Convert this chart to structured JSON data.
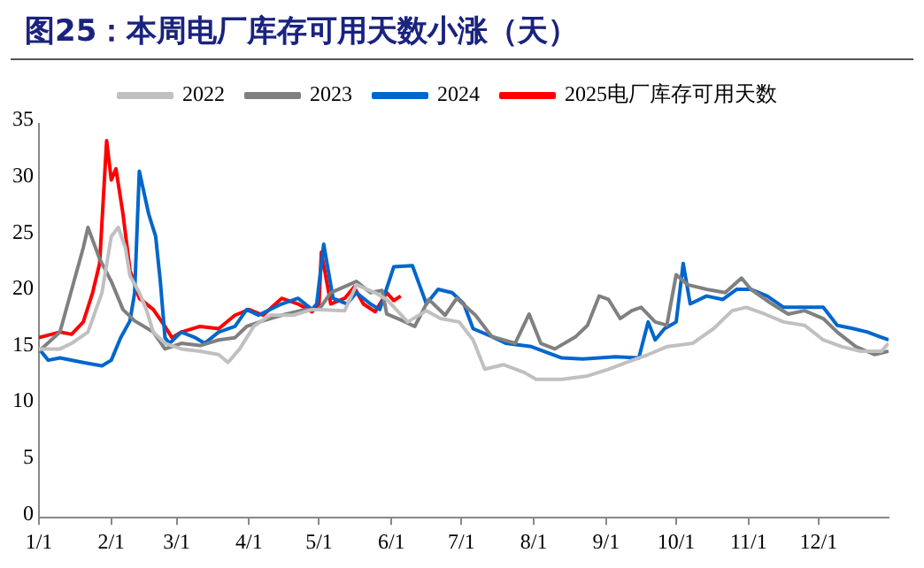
{
  "chart_data": {
    "type": "line",
    "title": "图25：本周电厂库存可用天数小涨（天）",
    "legend": "top",
    "marker": "none",
    "line_style": "solid",
    "grid": false,
    "xlim": [
      "--01-01",
      "--12-31"
    ],
    "xticks": [
      {
        "value": "--01-01",
        "label": "1/1"
      },
      {
        "value": "--02-01",
        "label": "2/1"
      },
      {
        "value": "--03-01",
        "label": "3/1"
      },
      {
        "value": "--04-01",
        "label": "4/1"
      },
      {
        "value": "--05-01",
        "label": "5/1"
      },
      {
        "value": "--06-01",
        "label": "6/1"
      },
      {
        "value": "--07-01",
        "label": "7/1"
      },
      {
        "value": "--08-01",
        "label": "8/1"
      },
      {
        "value": "--09-01",
        "label": "9/1"
      },
      {
        "value": "--10-01",
        "label": "10/1"
      },
      {
        "value": "--11-01",
        "label": "11/1"
      },
      {
        "value": "--12-01",
        "label": "12/1"
      }
    ],
    "ylim": [
      0,
      35
    ],
    "yticks": [
      0,
      5,
      10,
      15,
      20,
      25,
      30,
      35
    ],
    "series": [
      {
        "name": "2022",
        "color": "#c0c0c0",
        "x": [
          "--01-01",
          "--01-10",
          "--01-15",
          "--01-22",
          "--01-28",
          "--02-01",
          "--02-04",
          "--02-07",
          "--02-09",
          "--02-13",
          "--02-16",
          "--02-19",
          "--02-24",
          "--03-03",
          "--03-11",
          "--03-19",
          "--03-23",
          "--03-28",
          "--04-03",
          "--04-10",
          "--04-20",
          "--04-28",
          "--05-01",
          "--05-12",
          "--05-17",
          "--05-25",
          "--05-30",
          "--06-08",
          "--06-16",
          "--06-22",
          "--06-30",
          "--07-06",
          "--07-11",
          "--07-19",
          "--07-28",
          "--08-02",
          "--08-13",
          "--08-24",
          "--09-02",
          "--09-11",
          "--09-19",
          "--09-27",
          "--10-08",
          "--10-17",
          "--10-25",
          "--10-31",
          "--11-08",
          "--11-16",
          "--11-25",
          "--12-03",
          "--12-11",
          "--12-19",
          "--12-28",
          "--12-31"
        ],
        "values": [
          15,
          15,
          15.5,
          16.5,
          20,
          25,
          25.8,
          24,
          21.5,
          20,
          18.5,
          16.5,
          15.5,
          15,
          14.8,
          14.5,
          13.8,
          15,
          17,
          18,
          18,
          18.5,
          18.5,
          18.4,
          20.7,
          20,
          19.4,
          17.4,
          18.4,
          17.7,
          17.4,
          15.8,
          13.2,
          13.6,
          12.9,
          12.3,
          12.3,
          12.6,
          13.2,
          13.9,
          14.5,
          15.2,
          15.5,
          16.8,
          18.4,
          18.7,
          18.1,
          17.4,
          17.1,
          15.8,
          15.2,
          14.8,
          14.8,
          15.5
        ]
      },
      {
        "name": "2023",
        "color": "#808080",
        "x": [
          "--01-01",
          "--01-10",
          "--01-16",
          "--01-20",
          "--01-22",
          "--01-27",
          "--02-01",
          "--02-06",
          "--02-11",
          "--02-19",
          "--02-24",
          "--03-03",
          "--03-11",
          "--03-19",
          "--03-26",
          "--03-31",
          "--04-07",
          "--04-15",
          "--04-25",
          "--05-01",
          "--05-06",
          "--05-17",
          "--05-23",
          "--05-28",
          "--05-30",
          "--06-06",
          "--06-11",
          "--06-17",
          "--06-24",
          "--06-29",
          "--07-07",
          "--07-14",
          "--07-24",
          "--07-30",
          "--08-04",
          "--08-10",
          "--08-19",
          "--08-24",
          "--08-29",
          "--09-02",
          "--09-07",
          "--09-12",
          "--09-16",
          "--09-22",
          "--09-27",
          "--10-01",
          "--10-06",
          "--10-14",
          "--10-22",
          "--10-29",
          "--11-02",
          "--11-11",
          "--11-18",
          "--11-25",
          "--12-03",
          "--12-09",
          "--12-17",
          "--12-25",
          "--12-31"
        ],
        "values": [
          14.8,
          16.5,
          21,
          24,
          25.8,
          23,
          21,
          18.5,
          17.5,
          16.5,
          15,
          15.5,
          15.3,
          15.8,
          16,
          17,
          17.5,
          18,
          18.5,
          18.5,
          20,
          21,
          20,
          20.2,
          18.1,
          17.5,
          17,
          19.4,
          18,
          19.5,
          18,
          16.1,
          15.5,
          18.1,
          15.5,
          15,
          16.1,
          17.1,
          19.7,
          19.4,
          17.7,
          18.4,
          18.7,
          17.4,
          17.1,
          21.6,
          20.7,
          20.3,
          20,
          21.3,
          20.3,
          19,
          18.1,
          18.4,
          17.7,
          16.5,
          15.2,
          14.5,
          14.8
        ]
      },
      {
        "name": "2024",
        "color": "#0066cc",
        "x": [
          "--01-01",
          "--01-05",
          "--01-10",
          "--01-20",
          "--01-28",
          "--02-01",
          "--02-05",
          "--02-09",
          "--02-11",
          "--02-13",
          "--02-17",
          "--02-20",
          "--02-22",
          "--02-24",
          "--02-26",
          "--03-03",
          "--03-09",
          "--03-13",
          "--03-19",
          "--03-26",
          "--03-31",
          "--04-05",
          "--04-15",
          "--04-22",
          "--04-28",
          "--04-30",
          "--05-03",
          "--05-07",
          "--05-13",
          "--05-17",
          "--05-23",
          "--05-27",
          "--06-02",
          "--06-10",
          "--06-13",
          "--06-16",
          "--06-21",
          "--06-27",
          "--07-02",
          "--07-06",
          "--07-14",
          "--07-20",
          "--07-31",
          "--08-13",
          "--08-22",
          "--09-05",
          "--09-15",
          "--09-19",
          "--09-22",
          "--09-26",
          "--10-01",
          "--10-04",
          "--10-07",
          "--10-14",
          "--10-21",
          "--10-27",
          "--11-02",
          "--11-09",
          "--11-16",
          "--11-25",
          "--12-03",
          "--12-09",
          "--12-16",
          "--12-22",
          "--12-27",
          "--12-31"
        ],
        "values": [
          15,
          14,
          14.2,
          13.8,
          13.5,
          14,
          16,
          17.5,
          20,
          30.8,
          27,
          25,
          21,
          16,
          15.5,
          16.5,
          16,
          15.5,
          16.5,
          17,
          18.5,
          18,
          19,
          19.5,
          18.5,
          19,
          24.3,
          19.5,
          19,
          20,
          19,
          18.5,
          22.3,
          22.4,
          20.7,
          19,
          20.3,
          20,
          19,
          16.8,
          16.1,
          15.5,
          15.2,
          14.2,
          14.1,
          14.3,
          14.2,
          17.4,
          15.8,
          16.8,
          17.4,
          22.6,
          19,
          19.7,
          19.4,
          20.3,
          20.3,
          19.7,
          18.7,
          18.7,
          18.7,
          17.1,
          16.8,
          16.5,
          16.1,
          15.8
        ]
      },
      {
        "name": "2025电厂库存可用天数",
        "color": "#ff0000",
        "x": [
          "--01-01",
          "--01-10",
          "--01-15",
          "--01-20",
          "--01-24",
          "--01-27",
          "--01-30",
          "--02-01",
          "--02-03",
          "--02-06",
          "--02-09",
          "--02-13",
          "--02-19",
          "--02-24",
          "--02-27",
          "--03-03",
          "--03-11",
          "--03-19",
          "--03-26",
          "--04-01",
          "--04-07",
          "--04-15",
          "--04-22",
          "--04-28",
          "--05-01",
          "--05-02",
          "--05-06",
          "--05-12",
          "--05-16",
          "--05-20",
          "--05-25",
          "--05-30",
          "--06-02",
          "--06-05"
        ],
        "values": [
          16,
          16.5,
          16.3,
          17.4,
          20,
          22.6,
          33.5,
          30,
          31,
          27,
          22,
          19.5,
          18.5,
          17,
          16,
          16.5,
          17,
          16.8,
          18,
          18.5,
          18,
          19.5,
          19,
          18.3,
          19,
          23.6,
          19,
          19.5,
          20.5,
          19,
          18.3,
          20,
          19.3,
          19.7
        ]
      }
    ]
  }
}
